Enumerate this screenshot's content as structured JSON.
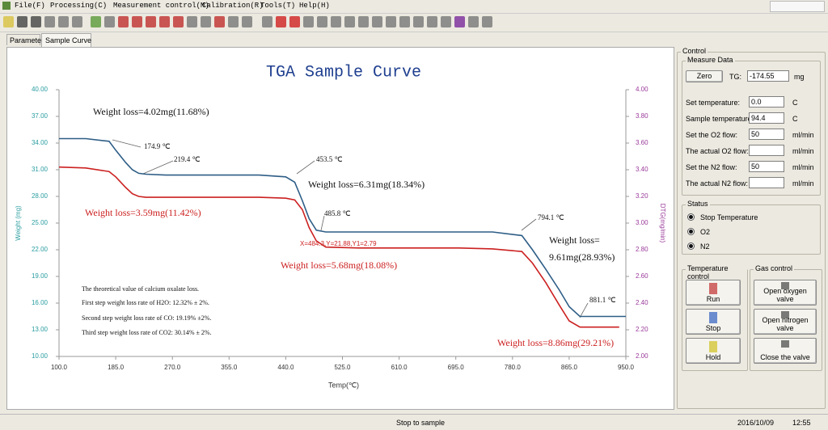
{
  "window": {
    "menu": [
      "File(F)",
      "Processing(C)",
      "Measurement control(M)",
      "Calibration(R)",
      "Tools(T)",
      "Help(H)"
    ]
  },
  "tabs": [
    "Parameter",
    "Sample Curve"
  ],
  "chart_data": {
    "type": "line",
    "title": "TGA Sample Curve",
    "xlabel": "Temp(℃)",
    "ylabel": "Weight (mg)",
    "y2label": "DTG(mg/min)",
    "x": [
      100,
      140,
      175,
      185,
      200,
      210,
      219.4,
      230,
      260,
      300,
      350,
      400,
      440,
      453.5,
      465,
      475,
      485.8,
      500,
      550,
      600,
      650,
      700,
      750,
      794.1,
      810,
      830,
      850,
      865,
      881.1,
      900,
      940,
      950
    ],
    "series": [
      {
        "color": "#2d5d86",
        "values": [
          34.5,
          34.5,
          34.2,
          33.2,
          31.8,
          31.0,
          30.6,
          30.5,
          30.4,
          30.4,
          30.4,
          30.4,
          30.2,
          29.6,
          27.5,
          25.5,
          24.2,
          24.0,
          24.0,
          24.0,
          24.0,
          24.0,
          24.0,
          23.6,
          22.0,
          19.8,
          17.5,
          15.6,
          14.5,
          14.5,
          14.5,
          14.5
        ]
      },
      {
        "color": "#cc2020",
        "values": [
          31.3,
          31.2,
          30.8,
          30.2,
          29.0,
          28.3,
          28.0,
          27.9,
          27.9,
          27.9,
          27.9,
          27.9,
          27.8,
          27.6,
          26.5,
          24.5,
          23.0,
          22.3,
          22.2,
          22.2,
          22.2,
          22.2,
          22.1,
          21.8,
          20.5,
          18.3,
          15.8,
          14.0,
          13.3,
          13.3,
          13.3,
          null
        ]
      }
    ],
    "xlim": [
      100,
      950
    ],
    "xticks": [
      {
        "value": 100,
        "label": "100.0"
      },
      {
        "value": 185,
        "label": "185.0"
      },
      {
        "value": 270,
        "label": "270.0"
      },
      {
        "value": 355,
        "label": "355.0"
      },
      {
        "value": 440,
        "label": "440.0"
      },
      {
        "value": 525,
        "label": "525.0"
      },
      {
        "value": 610,
        "label": "610.0"
      },
      {
        "value": 695,
        "label": "695.0"
      },
      {
        "value": 780,
        "label": "780.0"
      },
      {
        "value": 865,
        "label": "865.0"
      },
      {
        "value": 950,
        "label": "950.0"
      }
    ],
    "ylim": [
      10,
      40
    ],
    "yticks": [
      {
        "value": 10,
        "label": "10.00"
      },
      {
        "value": 13,
        "label": "13.00"
      },
      {
        "value": 16,
        "label": "16.00"
      },
      {
        "value": 19,
        "label": "19.00"
      },
      {
        "value": 22,
        "label": "22.00"
      },
      {
        "value": 25,
        "label": "25.00"
      },
      {
        "value": 28,
        "label": "28.00"
      },
      {
        "value": 31,
        "label": "31.00"
      },
      {
        "value": 34,
        "label": "34.00"
      },
      {
        "value": 37,
        "label": "37.00"
      },
      {
        "value": 40,
        "label": "40.00"
      }
    ],
    "y2lim": [
      2,
      4
    ],
    "y2ticks": [
      {
        "value": 2,
        "label": "2.00"
      },
      {
        "value": 2.2,
        "label": "2.20"
      },
      {
        "value": 2.4,
        "label": "2.40"
      },
      {
        "value": 2.6,
        "label": "2.60"
      },
      {
        "value": 2.8,
        "label": "2.80"
      },
      {
        "value": 3,
        "label": "3.00"
      },
      {
        "value": 3.2,
        "label": "3.20"
      },
      {
        "value": 3.4,
        "label": "3.40"
      },
      {
        "value": 3.6,
        "label": "3.60"
      },
      {
        "value": 3.8,
        "label": "3.80"
      },
      {
        "value": 4,
        "label": "4.00"
      }
    ],
    "annotations": [
      "Weight loss=4.02mg(11.68%)",
      "174.9 ℃",
      "219.4 ℃",
      "453.5 ℃",
      "Weight loss=6.31mg(18.34%)",
      "485.8 ℃",
      "794.1 ℃",
      "Weight loss=",
      "9.61mg(28.93%)",
      "881.1 ℃",
      "Weight loss=3.59mg(11.42%)",
      "Weight loss=5.68mg(18.08%)",
      "Weight loss=8.86mg(29.21%)",
      "X=484.3,Y=21.88,Y1=2.79"
    ],
    "notes": [
      "The theoretical value of calcium oxalate loss.",
      "First step weight loss rate of H2O: 12.32% ± 2%.",
      "Second step weight loss rate of CO: 19.19% ±2%.",
      "Third step weight loss rate of CO2: 30.14% ± 2%."
    ]
  },
  "control": {
    "title": "Control",
    "measure_data": {
      "title": "Measure Data",
      "zero": "Zero",
      "tg_label": "TG:",
      "tg_value": "-174.55",
      "tg_unit": "mg",
      "rows": [
        [
          "Set temperature:",
          "0.0",
          "C"
        ],
        [
          "Sample temperature:",
          "94.4",
          "C"
        ],
        [
          "Set the O2 flow:",
          "50",
          "ml/min"
        ],
        [
          "The actual O2 flow:",
          null,
          "ml/min"
        ],
        [
          "Set the N2 flow:",
          "50",
          "ml/min"
        ],
        [
          "The actual N2 flow:",
          null,
          "ml/min"
        ]
      ]
    },
    "status": {
      "title": "Status",
      "items": [
        "Stop Temperature",
        "O2",
        "N2"
      ]
    },
    "temperature_control": {
      "title": "Temperature control",
      "buttons": [
        "Run",
        "Stop",
        "Hold"
      ]
    },
    "gas_control": {
      "title": "Gas control",
      "buttons": [
        "Open oxygen valve",
        "Open nitrogen valve",
        "Close the valve"
      ]
    }
  },
  "status_bar": [
    "Stop to sample",
    "2016/10/09",
    "12:55"
  ]
}
